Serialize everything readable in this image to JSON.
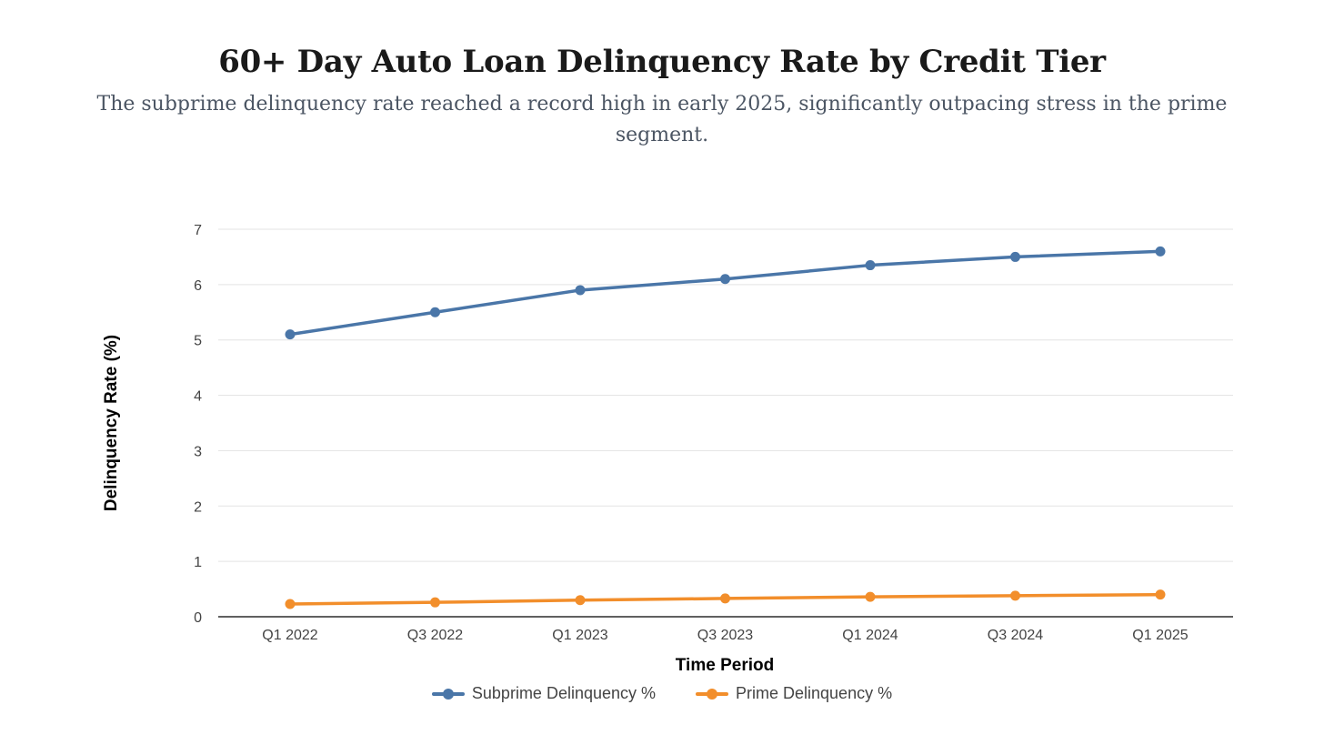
{
  "header": {
    "title": "60+ Day Auto Loan Delinquency Rate by Credit Tier",
    "subtitle": "The subprime delinquency rate reached a record high in early 2025, significantly outpacing stress in the prime segment."
  },
  "chart_data": {
    "type": "line",
    "title": "60+ Day Auto Loan Delinquency Rate by Credit Tier",
    "subtitle": "The subprime delinquency rate reached a record high in early 2025, significantly outpacing stress in the prime segment.",
    "xlabel": "Time Period",
    "ylabel": "Delinquency Rate (%)",
    "ylim": [
      0,
      7
    ],
    "yticks": [
      0,
      1,
      2,
      3,
      4,
      5,
      6,
      7
    ],
    "grid": true,
    "legend_position": "bottom-center",
    "categories": [
      "Q1 2022",
      "Q3 2022",
      "Q1 2023",
      "Q3 2023",
      "Q1 2024",
      "Q3 2024",
      "Q1 2025"
    ],
    "series": [
      {
        "name": "Subprime Delinquency %",
        "color": "#4a76a8",
        "values": [
          5.1,
          5.5,
          5.9,
          6.1,
          6.35,
          6.5,
          6.6
        ]
      },
      {
        "name": "Prime Delinquency %",
        "color": "#f28e2b",
        "values": [
          0.23,
          0.26,
          0.3,
          0.33,
          0.36,
          0.38,
          0.4
        ]
      }
    ]
  }
}
